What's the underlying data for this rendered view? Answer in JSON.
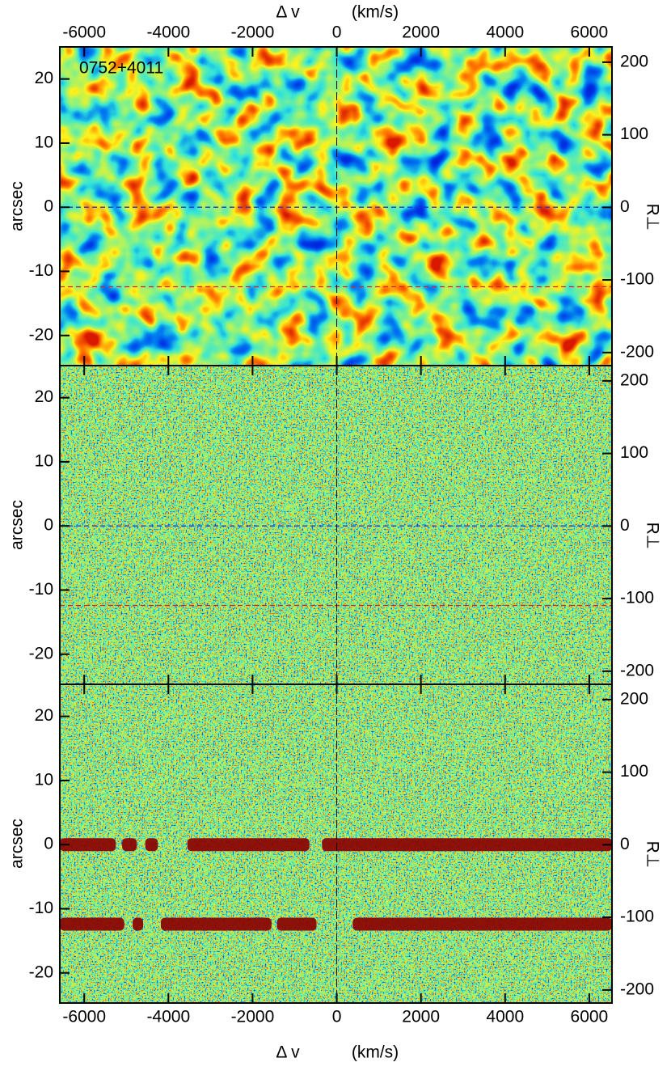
{
  "chart_data": [
    {
      "type": "image",
      "texture": "smooth",
      "label": "0752+4011",
      "xlabel": "Δ v",
      "xunit": "(km/s)",
      "xaxis_side": "top",
      "xlim": [
        -6580,
        6540
      ],
      "xticks": [
        -6000,
        -4000,
        -2000,
        0,
        2000,
        4000,
        6000
      ],
      "ylim": [
        -24.7,
        25
      ],
      "yticks": [
        -20,
        -10,
        0,
        10,
        20
      ],
      "ylabel": "arcsec",
      "y2lim": [
        -218,
        221
      ],
      "y2ticks": [
        -200,
        -100,
        0,
        100,
        200
      ],
      "y2label": "R⊥",
      "vline": 0,
      "hlines": [
        {
          "value": 0,
          "color": "#2233dd"
        },
        {
          "value": -12.4,
          "color": "#dd2222"
        }
      ]
    },
    {
      "type": "image",
      "texture": "fine",
      "xlim": [
        -6580,
        6540
      ],
      "xticks": [
        -6000,
        -4000,
        -2000,
        0,
        2000,
        4000,
        6000
      ],
      "ylim": [
        -24.7,
        25
      ],
      "yticks": [
        -20,
        -10,
        0,
        10,
        20
      ],
      "ylabel": "arcsec",
      "y2lim": [
        -218,
        221
      ],
      "y2ticks": [
        -200,
        -100,
        0,
        100,
        200
      ],
      "y2label": "R⊥",
      "vline": 0,
      "hlines": [
        {
          "value": 0,
          "color": "#2233dd"
        },
        {
          "value": -12.4,
          "color": "#dd2222"
        }
      ]
    },
    {
      "type": "image",
      "texture": "fine",
      "xlabel": "Δ v",
      "xunit": "(km/s)",
      "xaxis_side": "bottom",
      "xlim": [
        -6580,
        6540
      ],
      "xticks": [
        -6000,
        -4000,
        -2000,
        0,
        2000,
        4000,
        6000
      ],
      "ylim": [
        -24.7,
        25
      ],
      "yticks": [
        -20,
        -10,
        0,
        10,
        20
      ],
      "ylabel": "arcsec",
      "y2lim": [
        -218,
        221
      ],
      "y2ticks": [
        -200,
        -100,
        0,
        100,
        200
      ],
      "y2label": "R⊥",
      "vline": 0,
      "trace_color": "#8b0000",
      "traces": [
        {
          "y": 0,
          "segments": [
            [
              -6580,
              -5250
            ],
            [
              -5100,
              -4750
            ],
            [
              -4550,
              -4250
            ],
            [
              -3550,
              -650
            ],
            [
              -350,
              6540
            ]
          ]
        },
        {
          "y": -12.4,
          "segments": [
            [
              -6580,
              -5050
            ],
            [
              -4850,
              -4600
            ],
            [
              -4180,
              -1550
            ],
            [
              -1420,
              -480
            ],
            [
              380,
              6540
            ]
          ]
        }
      ]
    }
  ]
}
